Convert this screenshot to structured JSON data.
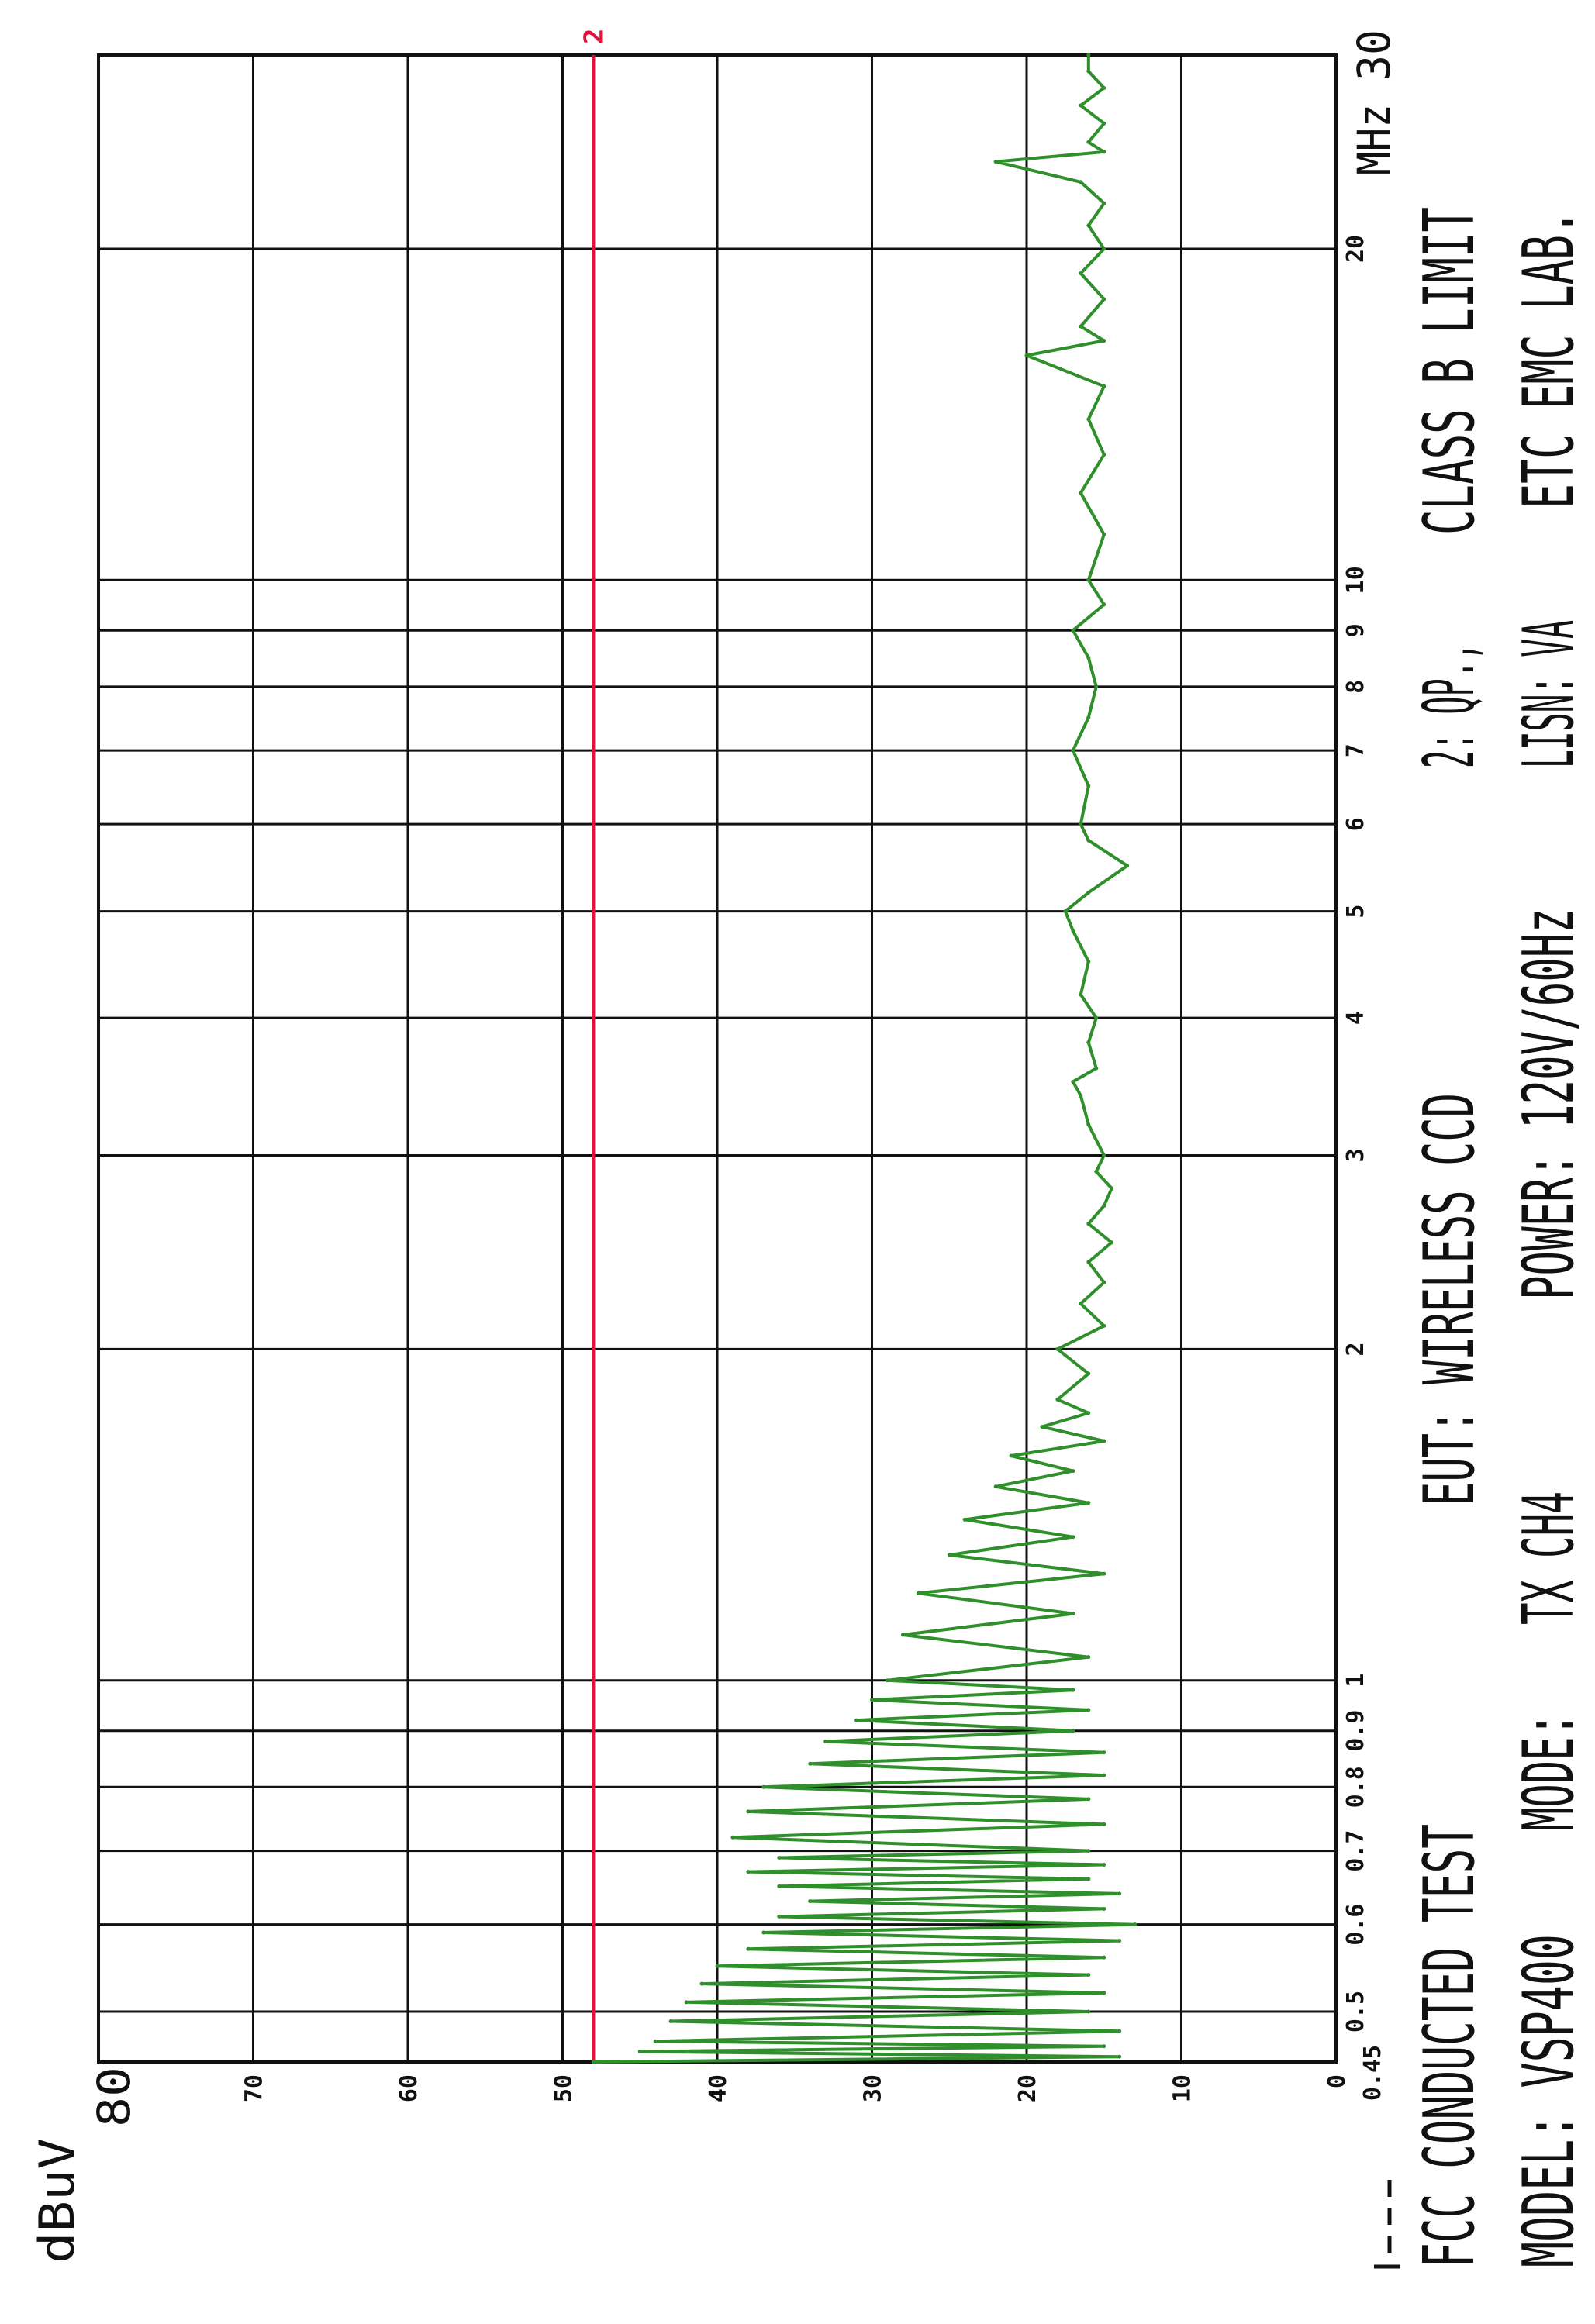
{
  "chart_data": {
    "type": "line",
    "ylabel": "dBuV",
    "ylim": [
      0,
      80
    ],
    "xlim": [
      0.45,
      30
    ],
    "xscale": "log",
    "xunit": "MHz",
    "grid": true,
    "orientation": "rotated 90 degrees counter-clockwise on page",
    "yticks": [
      {
        "value": 80,
        "label": "80"
      },
      {
        "value": 70,
        "label": "70"
      },
      {
        "value": 60,
        "label": "60"
      },
      {
        "value": 50,
        "label": "50"
      },
      {
        "value": 40,
        "label": "40"
      },
      {
        "value": 30,
        "label": "30"
      },
      {
        "value": 20,
        "label": "20"
      },
      {
        "value": 10,
        "label": "10"
      },
      {
        "value": 0,
        "label": "0"
      }
    ],
    "xticks": [
      {
        "value": 0.45,
        "label": "0.45"
      },
      {
        "value": 0.5,
        "label": "0.5"
      },
      {
        "value": 0.6,
        "label": "0.6"
      },
      {
        "value": 0.7,
        "label": "0.7"
      },
      {
        "value": 0.8,
        "label": "0.8"
      },
      {
        "value": 0.9,
        "label": "0.9"
      },
      {
        "value": 1,
        "label": "1"
      },
      {
        "value": 2,
        "label": "2"
      },
      {
        "value": 3,
        "label": "3"
      },
      {
        "value": 4,
        "label": "4"
      },
      {
        "value": 5,
        "label": "5"
      },
      {
        "value": 6,
        "label": "6"
      },
      {
        "value": 7,
        "label": "7"
      },
      {
        "value": 8,
        "label": "8"
      },
      {
        "value": 9,
        "label": "9"
      },
      {
        "value": 10,
        "label": "10"
      },
      {
        "value": 20,
        "label": "20"
      },
      {
        "value": 30,
        "label": "30"
      }
    ],
    "xunit_label": "MHz",
    "limit_line": {
      "value": 48,
      "marker": "2",
      "color": "#e3123c"
    },
    "trace_color": "#2f8f2a",
    "series": [
      {
        "x": [
          0.45,
          0.455,
          0.46,
          0.465,
          0.47,
          0.48,
          0.49,
          0.5,
          0.51,
          0.52,
          0.53,
          0.54,
          0.55,
          0.56,
          0.57,
          0.58,
          0.59,
          0.6,
          0.61,
          0.62,
          0.63,
          0.64,
          0.65,
          0.66,
          0.67,
          0.68,
          0.69,
          0.7,
          0.72,
          0.74,
          0.76,
          0.78,
          0.8,
          0.82,
          0.84,
          0.86,
          0.88,
          0.9,
          0.92,
          0.94,
          0.96,
          0.98,
          1.0,
          1.05,
          1.1,
          1.15,
          1.2,
          1.25,
          1.3,
          1.35,
          1.4,
          1.45,
          1.5,
          1.55,
          1.6,
          1.65,
          1.7,
          1.75,
          1.8,
          1.9,
          2.0,
          2.1,
          2.2,
          2.3,
          2.4,
          2.5,
          2.6,
          2.7,
          2.8,
          2.9,
          3.0,
          3.2,
          3.4,
          3.5,
          3.6,
          3.8,
          4.0,
          4.2,
          4.5,
          4.8,
          5.0,
          5.2,
          5.5,
          5.8,
          6.0,
          6.5,
          7.0,
          7.5,
          8.0,
          8.5,
          9.0,
          9.5,
          10,
          11,
          12,
          13,
          14,
          15,
          16,
          16.5,
          17,
          18,
          19,
          20,
          21,
          22,
          23,
          24,
          24.5,
          25,
          26,
          27,
          28,
          29,
          30
        ],
        "y": [
          48,
          14,
          45,
          15,
          44,
          14,
          43,
          16,
          42,
          15,
          41,
          16,
          40,
          15,
          38,
          14,
          37,
          13,
          36,
          15,
          34,
          14,
          36,
          16,
          38,
          15,
          36,
          16,
          39,
          15,
          38,
          16,
          37,
          15,
          34,
          15,
          33,
          17,
          31,
          16,
          30,
          17,
          29,
          16,
          28,
          17,
          27,
          15,
          25,
          17,
          24,
          16,
          22,
          17,
          21,
          15,
          19,
          16,
          18,
          16,
          18,
          15,
          16.5,
          15,
          16,
          14.5,
          16,
          15,
          14.5,
          15.5,
          15,
          16,
          16.5,
          17,
          15.5,
          16,
          15.5,
          16.5,
          16,
          17,
          17.5,
          16,
          13.5,
          16,
          16.5,
          16,
          17,
          16,
          15.5,
          16,
          17,
          15,
          16,
          15,
          16.5,
          15,
          16,
          15,
          20,
          15,
          16.5,
          15,
          16.5,
          15,
          16,
          15,
          16.5,
          22,
          15,
          16,
          15,
          16.5,
          15,
          16,
          16
        ]
      }
    ]
  },
  "legend": {
    "title": "FCC CONDUCTED TEST",
    "model": "MODEL: VSP400",
    "eut": "EUT: WIRELESS CCD",
    "mode_label": "MODE:",
    "mode_value": "TX CH4",
    "power": "POWER: 120V/60Hz",
    "detector": "2: QP.,",
    "lisn": "LISN: VA",
    "limit": "CLASS B LIMIT",
    "lab": "ETC EMC LAB."
  }
}
